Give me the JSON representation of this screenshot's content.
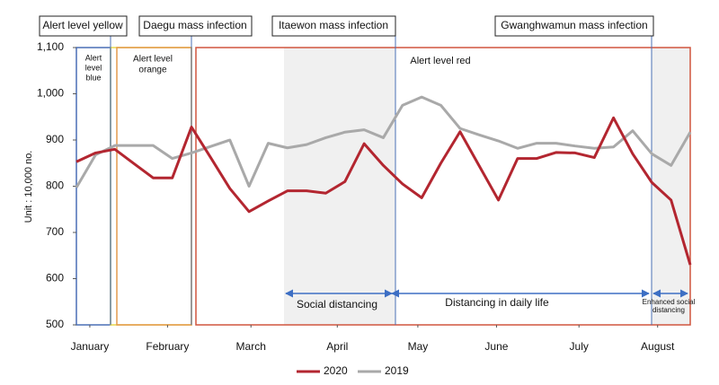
{
  "chart_data": {
    "type": "line",
    "y_label": "Unit : 10,000 no.",
    "x": [
      0,
      1,
      2,
      3,
      4,
      5,
      6,
      7,
      8,
      9,
      10,
      11,
      12,
      13,
      14,
      15,
      16,
      17,
      18,
      19,
      20,
      21,
      22,
      23,
      24,
      25,
      26,
      27,
      28,
      29,
      30,
      31,
      32
    ],
    "xlim": [
      0,
      32
    ],
    "xticks": [
      {
        "value": 0.7,
        "label": "January"
      },
      {
        "value": 4.75,
        "label": "February"
      },
      {
        "value": 9.1,
        "label": "March"
      },
      {
        "value": 13.6,
        "label": "April"
      },
      {
        "value": 17.8,
        "label": "May"
      },
      {
        "value": 21.9,
        "label": "June"
      },
      {
        "value": 26.2,
        "label": "July"
      },
      {
        "value": 30.3,
        "label": "August"
      }
    ],
    "ylim": [
      500,
      1100
    ],
    "yticks": [
      500,
      600,
      700,
      800,
      900,
      {
        "value": 1000,
        "label": "1,000"
      },
      {
        "value": 1100,
        "label": "1,100"
      }
    ],
    "series": [
      {
        "name": "2020",
        "color": "#b32630",
        "values": [
          853,
          872,
          880,
          849,
          818,
          818,
          928,
          862,
          795,
          745,
          768,
          790,
          790,
          785,
          810,
          892,
          845,
          805,
          775,
          850,
          918,
          844,
          770,
          860,
          860,
          873,
          872,
          862,
          948,
          870,
          808,
          770,
          630
        ]
      },
      {
        "name": "2019",
        "color": "#a9a9a9",
        "values": [
          797,
          868,
          888,
          888,
          888,
          860,
          872,
          886,
          900,
          800,
          893,
          883,
          890,
          905,
          917,
          922,
          905,
          975,
          993,
          975,
          925,
          911,
          898,
          882,
          893,
          893,
          887,
          882,
          885,
          920,
          870,
          845,
          917
        ]
      }
    ],
    "annotations": {
      "events": [
        "Alert level yellow",
        "Daegu mass infection",
        "Itaewon mass infection",
        "Gwanghwamun mass infection"
      ],
      "levels": [
        [
          "Alert",
          "level",
          "blue"
        ],
        [
          "Alert level",
          "orange"
        ],
        [
          "Alert level red"
        ]
      ],
      "phases": [
        [
          "Social distancing"
        ],
        [
          "Distancing in daily life"
        ],
        [
          "Enhanced social",
          "distancing"
        ]
      ]
    }
  }
}
